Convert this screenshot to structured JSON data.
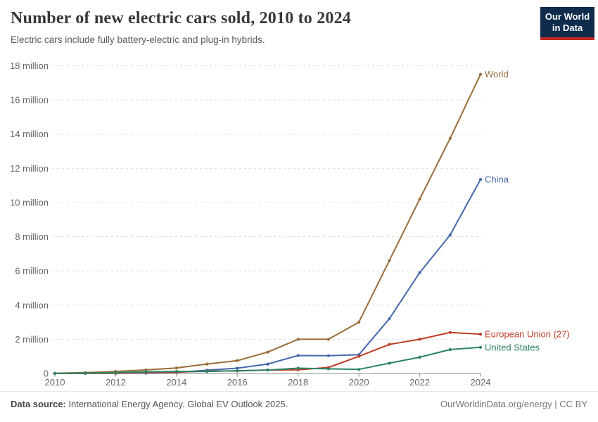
{
  "header": {
    "title": "Number of new electric cars sold, 2010 to 2024",
    "subtitle": "Electric cars include fully battery-electric and plug-in hybrids.",
    "logo": {
      "line1": "Our World",
      "line2": "in Data",
      "bg_color": "#0f2c4c",
      "accent_color": "#c22a28"
    }
  },
  "chart_data": {
    "type": "line",
    "title": "Number of new electric cars sold, 2010 to 2024",
    "xlabel": "",
    "ylabel": "",
    "unit": "million cars",
    "grid": true,
    "legend_position": "end-of-line-labels",
    "x": [
      2010,
      2011,
      2012,
      2013,
      2014,
      2015,
      2016,
      2017,
      2018,
      2019,
      2020,
      2021,
      2022,
      2023,
      2024
    ],
    "x_ticks": [
      2010,
      2012,
      2014,
      2016,
      2018,
      2020,
      2022,
      2024
    ],
    "xlim": [
      2010,
      2024
    ],
    "y_ticks": [
      0,
      2,
      4,
      6,
      8,
      10,
      12,
      14,
      16,
      18
    ],
    "y_tick_suffix": " million",
    "ylim": [
      0,
      18
    ],
    "series": [
      {
        "name": "World",
        "color": "#996d39",
        "values": [
          0.01,
          0.05,
          0.12,
          0.21,
          0.32,
          0.55,
          0.75,
          1.25,
          2.0,
          2.0,
          3.0,
          6.6,
          10.2,
          13.75,
          17.5
        ]
      },
      {
        "name": "China",
        "color": "#4668ac",
        "values": [
          0.0,
          0.005,
          0.01,
          0.02,
          0.06,
          0.19,
          0.31,
          0.55,
          1.05,
          1.04,
          1.1,
          3.2,
          5.9,
          8.1,
          11.35
        ]
      },
      {
        "name": "European Union (27)",
        "color": "#bd3e26",
        "values": [
          0.0,
          0.01,
          0.02,
          0.05,
          0.08,
          0.13,
          0.15,
          0.2,
          0.22,
          0.35,
          1.0,
          1.7,
          2.0,
          2.4,
          2.3
        ]
      },
      {
        "name": "United States",
        "color": "#2c8465",
        "values": [
          0.0,
          0.02,
          0.05,
          0.1,
          0.12,
          0.12,
          0.16,
          0.2,
          0.31,
          0.27,
          0.24,
          0.6,
          0.95,
          1.4,
          1.53
        ]
      }
    ]
  },
  "footer": {
    "source_label": "Data source:",
    "source_text": " International Energy Agency. Global EV Outlook 2025.",
    "credit": "OurWorldinData.org/energy | CC BY"
  }
}
